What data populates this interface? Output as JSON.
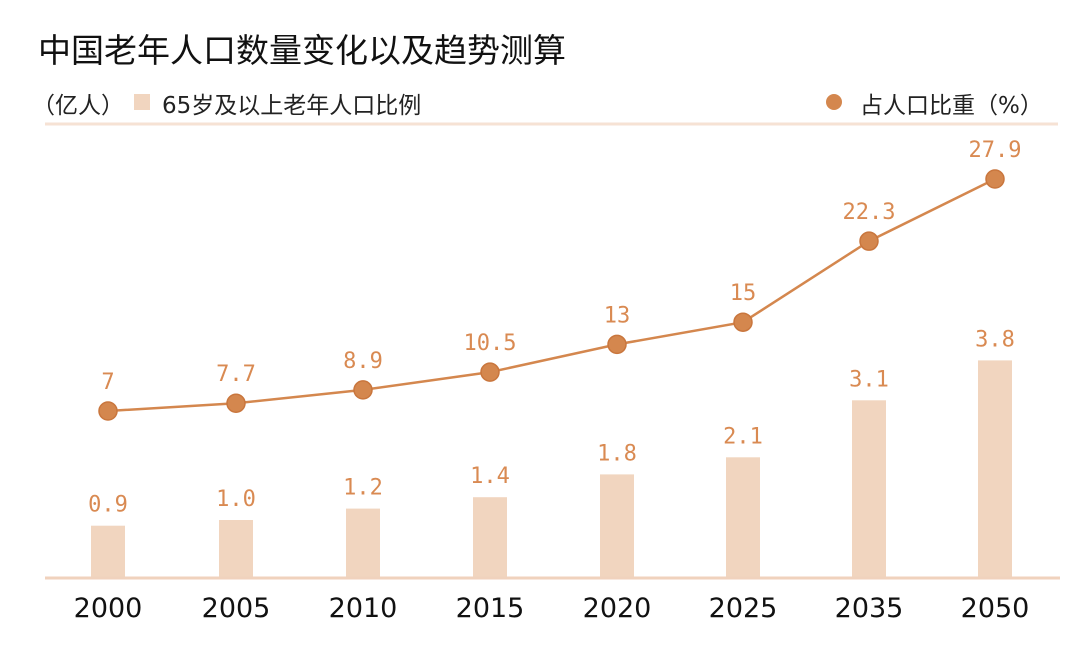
{
  "chart_data": {
    "type": "bar+line",
    "title": "中国老年人口数量变化以及趋势测算",
    "unit_label": "（亿人）",
    "categories": [
      "2000",
      "2005",
      "2010",
      "2015",
      "2020",
      "2025",
      "2035",
      "2050"
    ],
    "series": [
      {
        "name": "65岁及以上老年人口比例",
        "type": "bar",
        "values": [
          0.9,
          1.0,
          1.2,
          1.4,
          1.8,
          2.1,
          3.1,
          3.8
        ],
        "labels": [
          "0.9",
          "1.0",
          "1.2",
          "1.4",
          "1.8",
          "2.1",
          "3.1",
          "3.8"
        ],
        "color": "#f1d5bf"
      },
      {
        "name": "占人口比重（%）",
        "type": "line",
        "values": [
          7,
          7.7,
          8.9,
          10.5,
          13,
          15,
          22.3,
          27.9
        ],
        "labels": [
          "7",
          "7.7",
          "8.9",
          "10.5",
          "13",
          "15",
          "22.3",
          "27.9"
        ],
        "color": "#d4874e"
      }
    ],
    "label_color": "#d98a52",
    "grid": false,
    "legend_placement": "top"
  }
}
